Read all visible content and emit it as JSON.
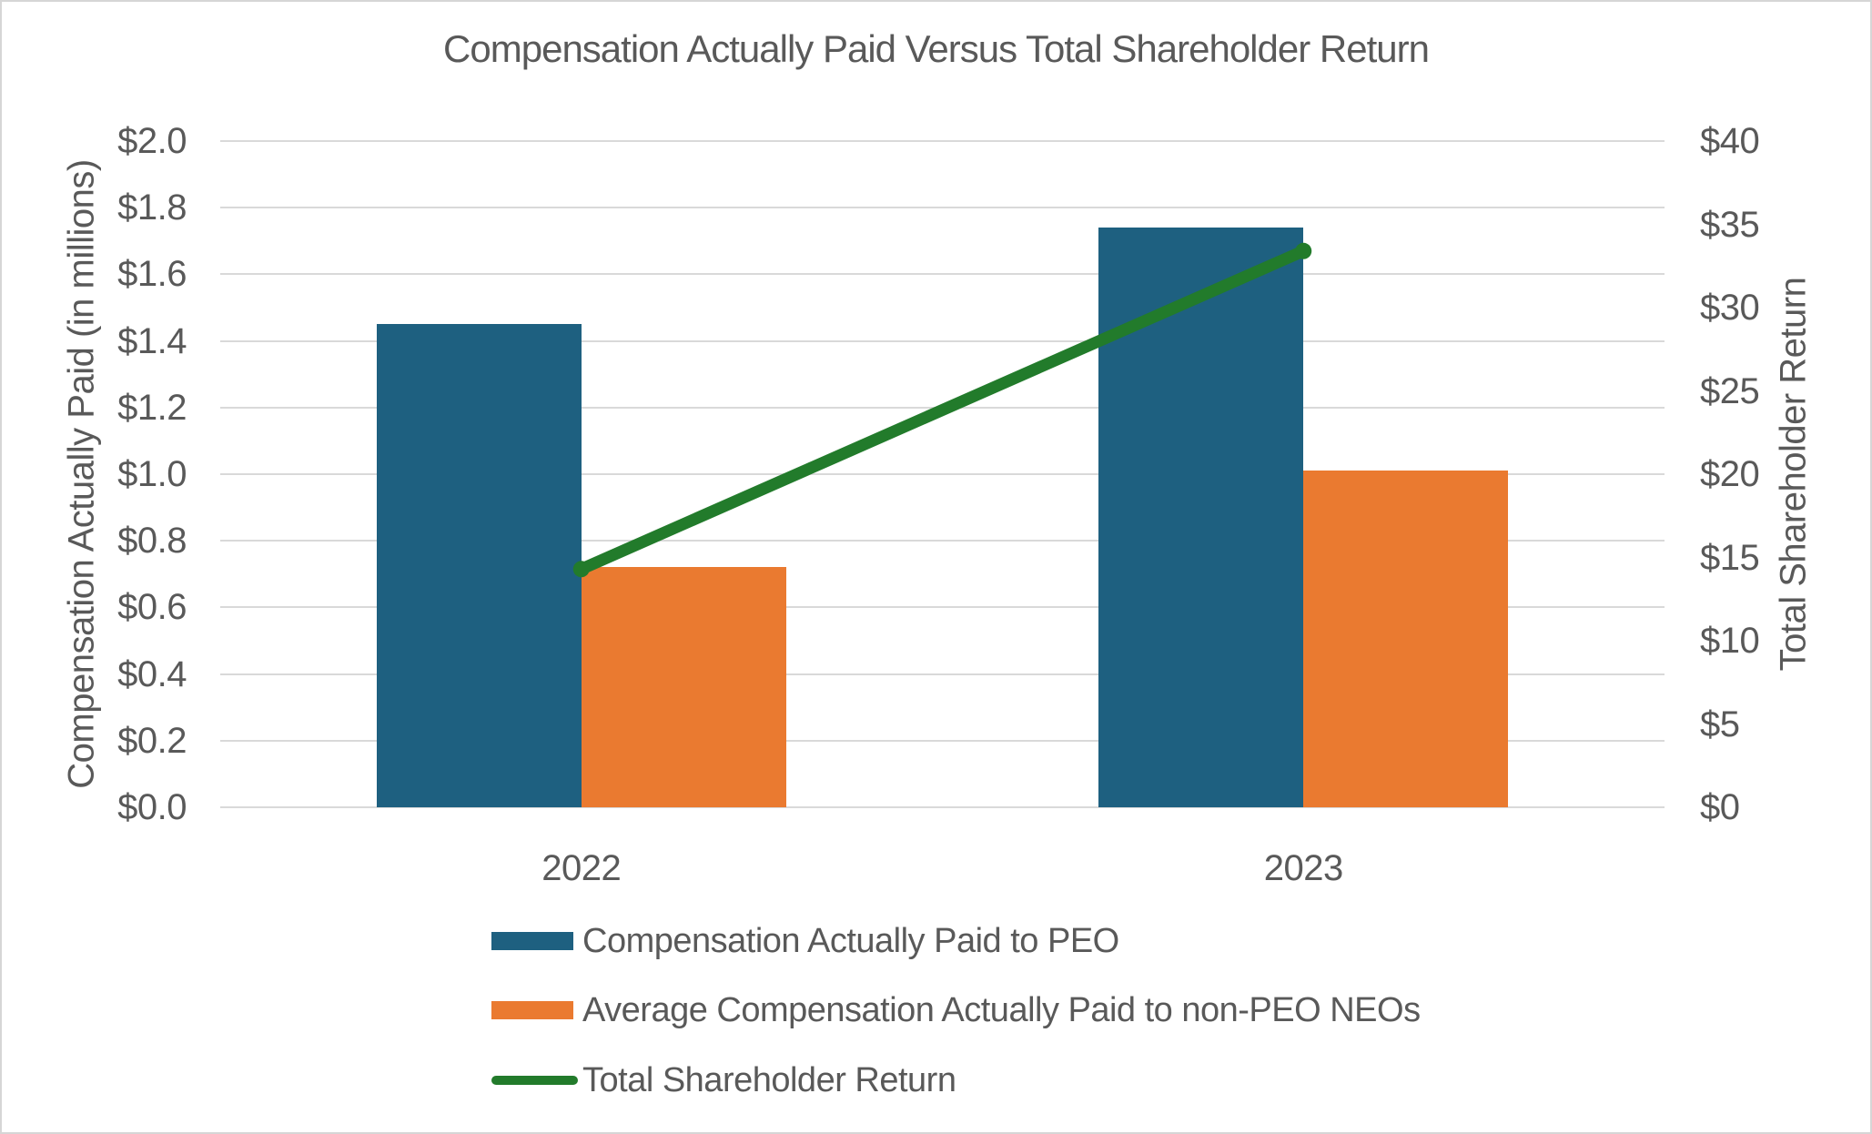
{
  "title": "Compensation Actually Paid Versus Total Shareholder Return",
  "colors": {
    "bar_peo": "#1E6080",
    "bar_neo": "#EA7A30",
    "line_tsr": "#227B2B",
    "text": "#595959",
    "gridline": "#D9D9D9",
    "border": "#D6D6D6",
    "background": "#FFFFFF"
  },
  "chart_data": {
    "type": "bar",
    "subtype": "grouped bars with secondary-axis line",
    "title": "Compensation Actually Paid Versus Total Shareholder Return",
    "categories": [
      "2022",
      "2023"
    ],
    "series": [
      {
        "id": "peo",
        "name": "Compensation Actually Paid to PEO",
        "type": "bar",
        "axis": "left",
        "color": "#1E6080",
        "values": [
          1.45,
          1.74
        ]
      },
      {
        "id": "neo",
        "name": "Average Compensation Actually Paid to non-PEO NEOs",
        "type": "bar",
        "axis": "left",
        "color": "#EA7A30",
        "values": [
          0.72,
          1.01
        ]
      },
      {
        "id": "tsr",
        "name": "Total Shareholder Return",
        "type": "line",
        "axis": "right",
        "color": "#227B2B",
        "values": [
          14.3,
          33.4
        ]
      }
    ],
    "left_axis": {
      "label": "Compensation Actually Paid (in millions)",
      "min": 0.0,
      "max": 2.0,
      "tick_step": 0.2,
      "ticks": [
        "$2.0",
        "$1.8",
        "$1.6",
        "$1.4",
        "$1.2",
        "$1.0",
        "$0.8",
        "$0.6",
        "$0.4",
        "$0.2",
        "$0.0"
      ]
    },
    "right_axis": {
      "label": "Total Shareholder Return",
      "min": 0,
      "max": 40,
      "tick_step": 5,
      "ticks": [
        "$40",
        "$35",
        "$30",
        "$25",
        "$20",
        "$15",
        "$10",
        "$5",
        "$0"
      ]
    },
    "grid": true,
    "legend_position": "bottom-left"
  },
  "legend": {
    "items": [
      {
        "swatch": "bar",
        "color": "#1E6080",
        "label": "Compensation Actually Paid to PEO"
      },
      {
        "swatch": "bar",
        "color": "#EA7A30",
        "label": "Average Compensation Actually Paid to non-PEO NEOs"
      },
      {
        "swatch": "line",
        "color": "#227B2B",
        "label": "Total Shareholder Return"
      }
    ]
  }
}
